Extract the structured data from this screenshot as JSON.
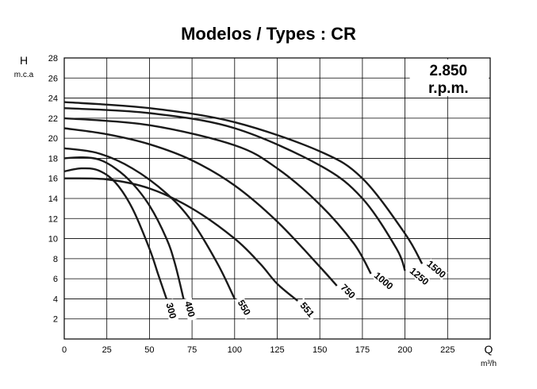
{
  "chart_data": {
    "type": "line",
    "title": "Modelos / Types : CR",
    "ylabel": "H",
    "ylabel_unit": "m.c.a",
    "xlabel": "Q",
    "xlabel_unit": "m³/h",
    "xlim": [
      0,
      250
    ],
    "ylim": [
      0,
      28
    ],
    "x_ticks": [
      "0",
      "25",
      "50",
      "75",
      "100",
      "125",
      "150",
      "175",
      "200",
      "225"
    ],
    "y_ticks": [
      "2",
      "4",
      "6",
      "8",
      "10",
      "12",
      "14",
      "16",
      "18",
      "20",
      "22",
      "24",
      "26",
      "28"
    ],
    "grid": true,
    "speed_label_line1": "2.850",
    "speed_label_line2": "r.p.m.",
    "series": [
      {
        "name": "300",
        "x": [
          0,
          10,
          20,
          30,
          40,
          50,
          55,
          60
        ],
        "y": [
          16.7,
          17.0,
          16.8,
          15.6,
          13.0,
          9.0,
          6.5,
          4.0
        ]
      },
      {
        "name": "400",
        "x": [
          0,
          10,
          20,
          30,
          40,
          50,
          60,
          65,
          70
        ],
        "y": [
          18.0,
          18.1,
          17.9,
          17.0,
          15.5,
          13.3,
          10.0,
          7.5,
          4.0
        ]
      },
      {
        "name": "550",
        "x": [
          0,
          20,
          40,
          60,
          75,
          90,
          100
        ],
        "y": [
          19.0,
          18.5,
          17.0,
          14.5,
          11.7,
          7.5,
          4.0
        ]
      },
      {
        "name": "551",
        "x": [
          0,
          25,
          50,
          75,
          100,
          115,
          125,
          137
        ],
        "y": [
          16.0,
          15.9,
          15.0,
          13.0,
          10.0,
          7.5,
          5.5,
          3.8
        ]
      },
      {
        "name": "750",
        "x": [
          0,
          25,
          50,
          75,
          100,
          125,
          150,
          160
        ],
        "y": [
          21.0,
          20.4,
          19.4,
          17.8,
          15.3,
          11.7,
          7.2,
          5.3
        ]
      },
      {
        "name": "1000",
        "x": [
          0,
          50,
          100,
          125,
          150,
          170,
          180
        ],
        "y": [
          22.0,
          21.3,
          19.3,
          17.0,
          13.4,
          9.5,
          6.5
        ]
      },
      {
        "name": "1250",
        "x": [
          0,
          50,
          100,
          150,
          175,
          195,
          200
        ],
        "y": [
          23.0,
          22.5,
          21.0,
          17.3,
          14.0,
          9.0,
          6.8
        ]
      },
      {
        "name": "1500",
        "x": [
          0,
          50,
          100,
          150,
          175,
          200,
          210
        ],
        "y": [
          23.6,
          23.0,
          21.6,
          18.7,
          16.0,
          10.5,
          7.5
        ]
      }
    ]
  }
}
